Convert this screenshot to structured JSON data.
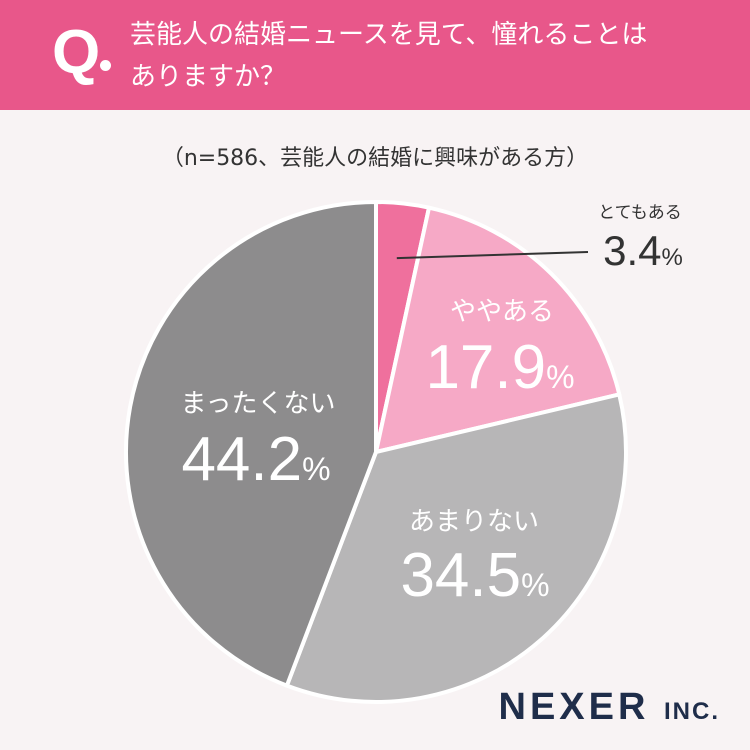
{
  "question": {
    "mark": "Q",
    "line1": "芸能人の結婚ニュースを見て、憧れることは",
    "line2": "ありますか？"
  },
  "sample_note": "（n=586、芸能人の結婚に興味がある方）",
  "logo": {
    "name": "NEXER",
    "suffix": "INC."
  },
  "colors": {
    "header": "#e8578a",
    "slices": [
      "#ef709d",
      "#f6a9c6",
      "#b7b6b7",
      "#8d8c8d"
    ],
    "background": "#f8f3f4"
  },
  "chart_data": {
    "type": "pie",
    "title": "",
    "series": [
      {
        "values": [
          3.4,
          17.9,
          34.5,
          44.2
        ],
        "labels": [
          "とてもある",
          "ややある",
          "あまりない",
          "まったくない"
        ]
      }
    ],
    "value_suffix": "%"
  }
}
